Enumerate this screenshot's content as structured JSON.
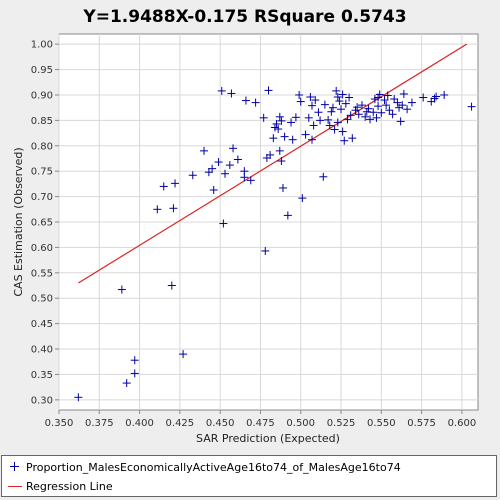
{
  "chart_data": {
    "type": "scatter",
    "title": "Y=1.9488X-0.175    RSquare 0.5743",
    "xlabel": "SAR Prediction (Expected)",
    "ylabel": "CAS Estimation (Observed)",
    "xlim": [
      0.35,
      0.61
    ],
    "ylim": [
      0.28,
      1.02
    ],
    "x_ticks": [
      "0.350",
      "0.375",
      "0.400",
      "0.425",
      "0.450",
      "0.475",
      "0.500",
      "0.525",
      "0.550",
      "0.575",
      "0.600"
    ],
    "y_ticks": [
      "0.30",
      "0.35",
      "0.40",
      "0.45",
      "0.50",
      "0.55",
      "0.60",
      "0.65",
      "0.70",
      "0.75",
      "0.80",
      "0.85",
      "0.90",
      "0.95",
      "1.00"
    ],
    "grid": true,
    "legend_position": "bottom",
    "series": [
      {
        "name": "Proportion_MalesEconomicallyActiveAge16to74_of_MalesAge16to74",
        "marker": "plus",
        "color": "#0000a0",
        "points": [
          [
            0.362,
            0.305
          ],
          [
            0.389,
            0.517
          ],
          [
            0.392,
            0.333
          ],
          [
            0.397,
            0.352
          ],
          [
            0.397,
            0.378
          ],
          [
            0.411,
            0.675
          ],
          [
            0.415,
            0.72
          ],
          [
            0.42,
            0.525
          ],
          [
            0.421,
            0.677
          ],
          [
            0.422,
            0.726
          ],
          [
            0.427,
            0.39
          ],
          [
            0.433,
            0.742
          ],
          [
            0.44,
            0.79
          ],
          [
            0.443,
            0.748
          ],
          [
            0.445,
            0.755
          ],
          [
            0.446,
            0.713
          ],
          [
            0.449,
            0.768
          ],
          [
            0.451,
            0.908
          ],
          [
            0.452,
            0.647
          ],
          [
            0.453,
            0.745
          ],
          [
            0.456,
            0.762
          ],
          [
            0.457,
            0.903
          ],
          [
            0.458,
            0.795
          ],
          [
            0.461,
            0.773
          ],
          [
            0.465,
            0.75
          ],
          [
            0.465,
            0.738
          ],
          [
            0.466,
            0.889
          ],
          [
            0.469,
            0.732
          ],
          [
            0.472,
            0.885
          ],
          [
            0.477,
            0.855
          ],
          [
            0.478,
            0.593
          ],
          [
            0.479,
            0.776
          ],
          [
            0.48,
            0.909
          ],
          [
            0.481,
            0.782
          ],
          [
            0.483,
            0.815
          ],
          [
            0.484,
            0.836
          ],
          [
            0.485,
            0.843
          ],
          [
            0.486,
            0.833
          ],
          [
            0.487,
            0.857
          ],
          [
            0.487,
            0.79
          ],
          [
            0.488,
            0.849
          ],
          [
            0.488,
            0.77
          ],
          [
            0.489,
            0.717
          ],
          [
            0.49,
            0.818
          ],
          [
            0.492,
            0.663
          ],
          [
            0.494,
            0.846
          ],
          [
            0.495,
            0.812
          ],
          [
            0.497,
            0.856
          ],
          [
            0.499,
            0.9
          ],
          [
            0.5,
            0.887
          ],
          [
            0.501,
            0.697
          ],
          [
            0.503,
            0.822
          ],
          [
            0.505,
            0.855
          ],
          [
            0.506,
            0.896
          ],
          [
            0.507,
            0.879
          ],
          [
            0.507,
            0.812
          ],
          [
            0.508,
            0.84
          ],
          [
            0.509,
            0.89
          ],
          [
            0.511,
            0.866
          ],
          [
            0.512,
            0.85
          ],
          [
            0.514,
            0.739
          ],
          [
            0.515,
            0.881
          ],
          [
            0.517,
            0.851
          ],
          [
            0.518,
            0.84
          ],
          [
            0.519,
            0.867
          ],
          [
            0.52,
            0.875
          ],
          [
            0.521,
            0.832
          ],
          [
            0.522,
            0.908
          ],
          [
            0.523,
            0.896
          ],
          [
            0.523,
            0.846
          ],
          [
            0.524,
            0.888
          ],
          [
            0.525,
            0.872
          ],
          [
            0.526,
            0.828
          ],
          [
            0.526,
            0.901
          ],
          [
            0.527,
            0.81
          ],
          [
            0.528,
            0.883
          ],
          [
            0.529,
            0.852
          ],
          [
            0.53,
            0.895
          ],
          [
            0.531,
            0.86
          ],
          [
            0.532,
            0.815
          ],
          [
            0.534,
            0.87
          ],
          [
            0.535,
            0.876
          ],
          [
            0.536,
            0.862
          ],
          [
            0.538,
            0.88
          ],
          [
            0.54,
            0.857
          ],
          [
            0.541,
            0.867
          ],
          [
            0.542,
            0.873
          ],
          [
            0.543,
            0.852
          ],
          [
            0.545,
            0.866
          ],
          [
            0.546,
            0.892
          ],
          [
            0.547,
            0.855
          ],
          [
            0.548,
            0.878
          ],
          [
            0.548,
            0.895
          ],
          [
            0.549,
            0.901
          ],
          [
            0.55,
            0.865
          ],
          [
            0.552,
            0.89
          ],
          [
            0.553,
            0.88
          ],
          [
            0.554,
            0.899
          ],
          [
            0.555,
            0.87
          ],
          [
            0.557,
            0.862
          ],
          [
            0.558,
            0.892
          ],
          [
            0.56,
            0.885
          ],
          [
            0.561,
            0.875
          ],
          [
            0.562,
            0.848
          ],
          [
            0.563,
            0.88
          ],
          [
            0.564,
            0.902
          ],
          [
            0.566,
            0.872
          ],
          [
            0.569,
            0.885
          ],
          [
            0.576,
            0.895
          ],
          [
            0.581,
            0.887
          ],
          [
            0.583,
            0.893
          ],
          [
            0.584,
            0.897
          ],
          [
            0.589,
            0.9
          ],
          [
            0.606,
            0.877
          ]
        ]
      },
      {
        "name": "Regression Line",
        "type": "line",
        "color": "#dd2222",
        "points": [
          [
            0.362,
            0.53
          ],
          [
            0.603,
            1.0
          ]
        ]
      }
    ]
  }
}
